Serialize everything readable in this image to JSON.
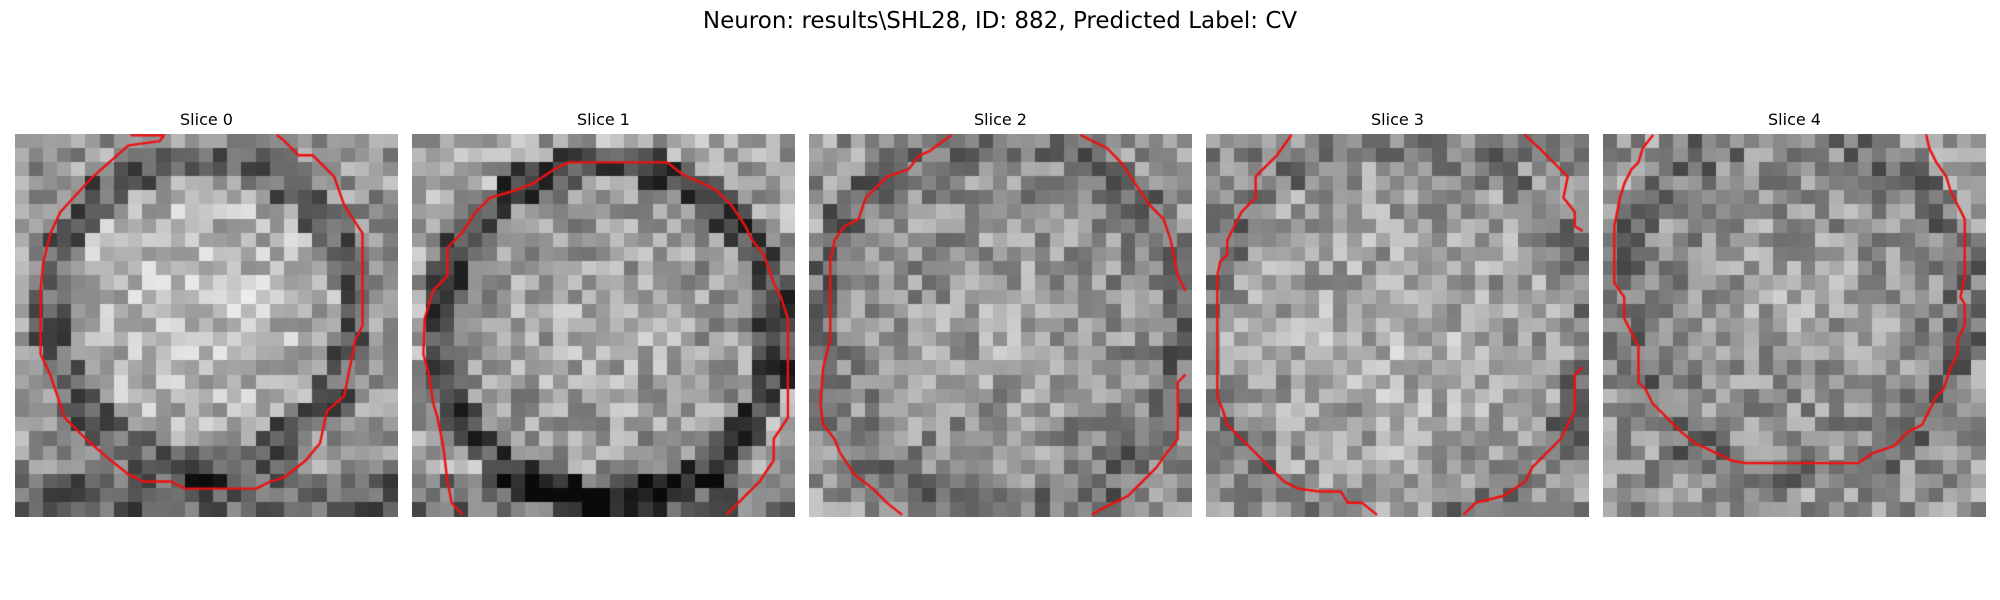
{
  "figure": {
    "title": "Neuron: results\\SHL28, ID: 882, Predicted Label: CV"
  },
  "contour_color": "#ee1111",
  "panels": [
    {
      "label": "Slice 0"
    },
    {
      "label": "Slice 1"
    },
    {
      "label": "Slice 2"
    },
    {
      "label": "Slice 3"
    },
    {
      "label": "Slice 4"
    }
  ]
}
